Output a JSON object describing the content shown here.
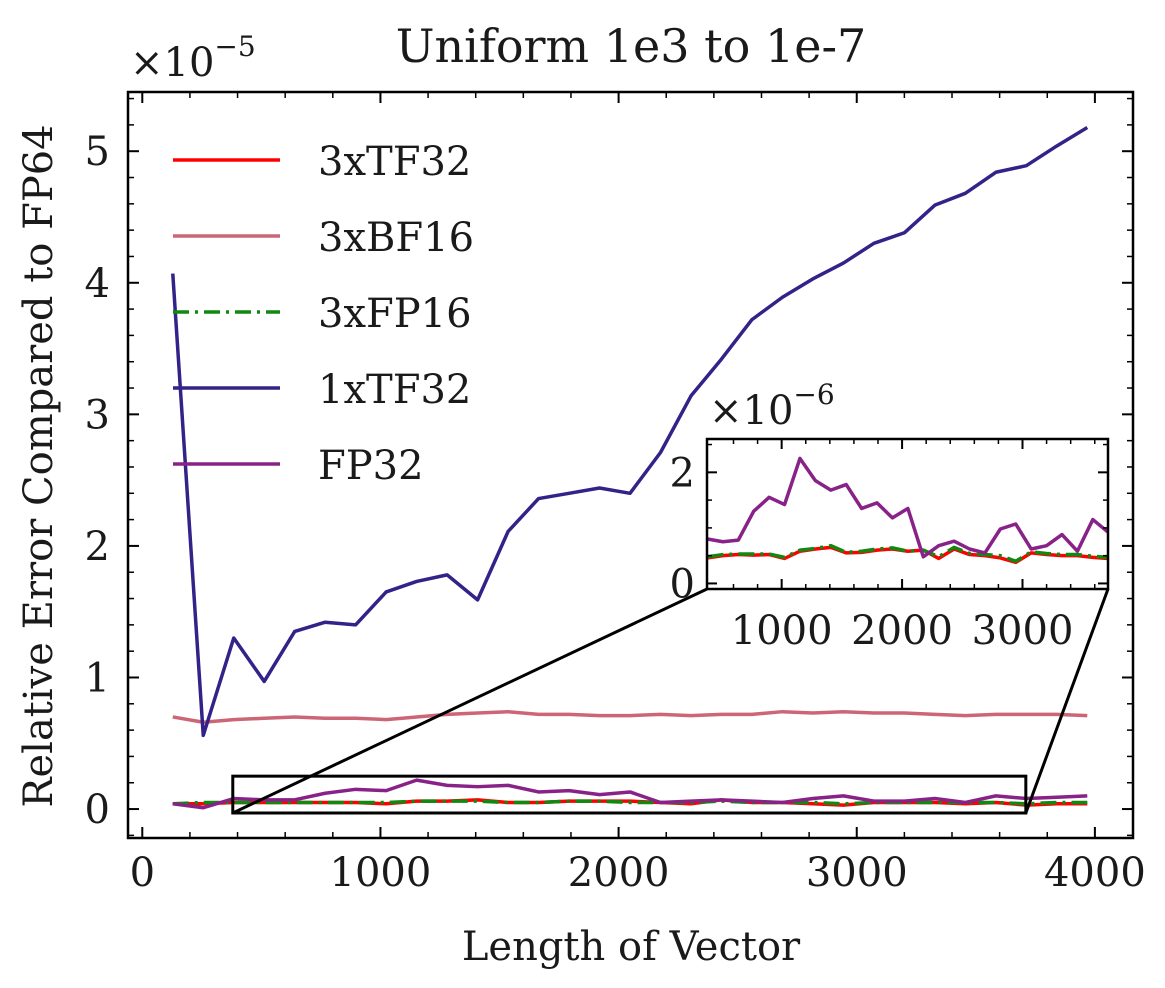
{
  "chart_data": {
    "type": "line",
    "title": "Uniform 1e3 to 1e-7",
    "xlabel": "Length of Vector",
    "ylabel": "Relative Error Compared to FP64",
    "y_multiplier": "×10",
    "y_exponent": "−5",
    "xlim": [
      -60,
      4160
    ],
    "ylim": [
      -0.22,
      5.45
    ],
    "xticks": [
      0,
      1000,
      2000,
      3000,
      4000
    ],
    "xtick_labels": [
      "0",
      "1000",
      "2000",
      "3000",
      "4000"
    ],
    "yticks": [
      0,
      1,
      2,
      3,
      4,
      5
    ],
    "ytick_labels": [
      "0",
      "1",
      "2",
      "3",
      "4",
      "5"
    ],
    "legend_position": "top-left",
    "x": [
      128,
      256,
      384,
      512,
      640,
      768,
      896,
      1024,
      1152,
      1280,
      1408,
      1536,
      1664,
      1792,
      1920,
      2048,
      2176,
      2304,
      2432,
      2560,
      2688,
      2816,
      2944,
      3072,
      3200,
      3328,
      3456,
      3584,
      3712,
      3840,
      3968
    ],
    "series": [
      {
        "name": "3xTF32",
        "color": "#ff0000",
        "style": "solid",
        "values": [
          0.04,
          0.04,
          0.05,
          0.05,
          0.05,
          0.05,
          0.05,
          0.04,
          0.06,
          0.06,
          0.07,
          0.05,
          0.05,
          0.06,
          0.06,
          0.06,
          0.05,
          0.04,
          0.07,
          0.05,
          0.05,
          0.04,
          0.03,
          0.05,
          0.05,
          0.05,
          0.04,
          0.05,
          0.03,
          0.04,
          0.04
        ]
      },
      {
        "name": "3xBF16",
        "color": "#cc6677",
        "style": "solid",
        "values": [
          0.7,
          0.66,
          0.68,
          0.69,
          0.7,
          0.69,
          0.69,
          0.68,
          0.7,
          0.72,
          0.73,
          0.74,
          0.72,
          0.72,
          0.71,
          0.71,
          0.72,
          0.71,
          0.72,
          0.72,
          0.74,
          0.73,
          0.74,
          0.73,
          0.73,
          0.72,
          0.71,
          0.72,
          0.72,
          0.72,
          0.71
        ]
      },
      {
        "name": "3xFP16",
        "color": "#118811",
        "style": "dashdot",
        "values": [
          0.04,
          0.05,
          0.05,
          0.05,
          0.05,
          0.05,
          0.05,
          0.05,
          0.06,
          0.06,
          0.06,
          0.05,
          0.05,
          0.06,
          0.06,
          0.05,
          0.05,
          0.05,
          0.06,
          0.05,
          0.05,
          0.05,
          0.04,
          0.05,
          0.05,
          0.05,
          0.05,
          0.05,
          0.04,
          0.05,
          0.05
        ]
      },
      {
        "name": "1xTF32",
        "color": "#332288",
        "style": "solid",
        "values": [
          4.07,
          0.56,
          1.3,
          0.97,
          1.35,
          1.42,
          1.4,
          1.65,
          1.73,
          1.78,
          1.59,
          2.11,
          2.36,
          2.4,
          2.44,
          2.4,
          2.71,
          3.14,
          3.42,
          3.72,
          3.89,
          4.03,
          4.15,
          4.3,
          4.38,
          4.59,
          4.68,
          4.84,
          4.89,
          5.04,
          5.18
        ]
      },
      {
        "name": "FP32",
        "color": "#882288",
        "style": "solid",
        "values": [
          0.04,
          0.01,
          0.08,
          0.07,
          0.07,
          0.12,
          0.15,
          0.14,
          0.22,
          0.18,
          0.17,
          0.18,
          0.13,
          0.14,
          0.11,
          0.13,
          0.05,
          0.06,
          0.07,
          0.06,
          0.05,
          0.08,
          0.1,
          0.06,
          0.06,
          0.08,
          0.05,
          0.1,
          0.08,
          0.09,
          0.1
        ]
      }
    ],
    "zoom_rect": {
      "x": [
        380,
        3710
      ],
      "y": [
        -0.03,
        0.25
      ]
    },
    "inset": {
      "y_multiplier": "×10",
      "y_exponent": "−6",
      "xlim": [
        380,
        3710
      ],
      "ylim": [
        -0.1,
        2.6
      ],
      "xticks": [
        1000,
        2000,
        3000
      ],
      "xtick_labels": [
        "1000",
        "2000",
        "3000"
      ],
      "yticks": [
        0,
        2
      ],
      "ytick_labels": [
        "0",
        "2"
      ],
      "x": [
        384,
        512,
        640,
        768,
        896,
        1024,
        1152,
        1280,
        1408,
        1536,
        1664,
        1792,
        1920,
        2048,
        2176,
        2304,
        2432,
        2560,
        2688,
        2816,
        2944,
        3072,
        3200,
        3328,
        3456,
        3584,
        3712
      ],
      "series": [
        {
          "name": "3xTF32",
          "color": "#ff0000",
          "style": "solid",
          "values": [
            0.46,
            0.5,
            0.52,
            0.51,
            0.52,
            0.45,
            0.58,
            0.62,
            0.65,
            0.55,
            0.56,
            0.6,
            0.62,
            0.58,
            0.6,
            0.45,
            0.62,
            0.52,
            0.5,
            0.46,
            0.38,
            0.55,
            0.52,
            0.5,
            0.5,
            0.47,
            0.45
          ]
        },
        {
          "name": "3xFP16",
          "color": "#118811",
          "style": "dashdot",
          "values": [
            0.48,
            0.52,
            0.53,
            0.53,
            0.53,
            0.47,
            0.6,
            0.63,
            0.68,
            0.56,
            0.58,
            0.62,
            0.64,
            0.58,
            0.6,
            0.48,
            0.65,
            0.54,
            0.52,
            0.5,
            0.4,
            0.57,
            0.54,
            0.52,
            0.52,
            0.49,
            0.47
          ]
        },
        {
          "name": "FP32",
          "color": "#882288",
          "style": "solid",
          "values": [
            0.8,
            0.75,
            0.78,
            1.3,
            1.55,
            1.42,
            2.25,
            1.85,
            1.68,
            1.78,
            1.35,
            1.45,
            1.18,
            1.35,
            0.48,
            0.68,
            0.76,
            0.62,
            0.55,
            0.98,
            1.07,
            0.62,
            0.68,
            0.88,
            0.58,
            1.15,
            0.92
          ]
        }
      ]
    }
  }
}
